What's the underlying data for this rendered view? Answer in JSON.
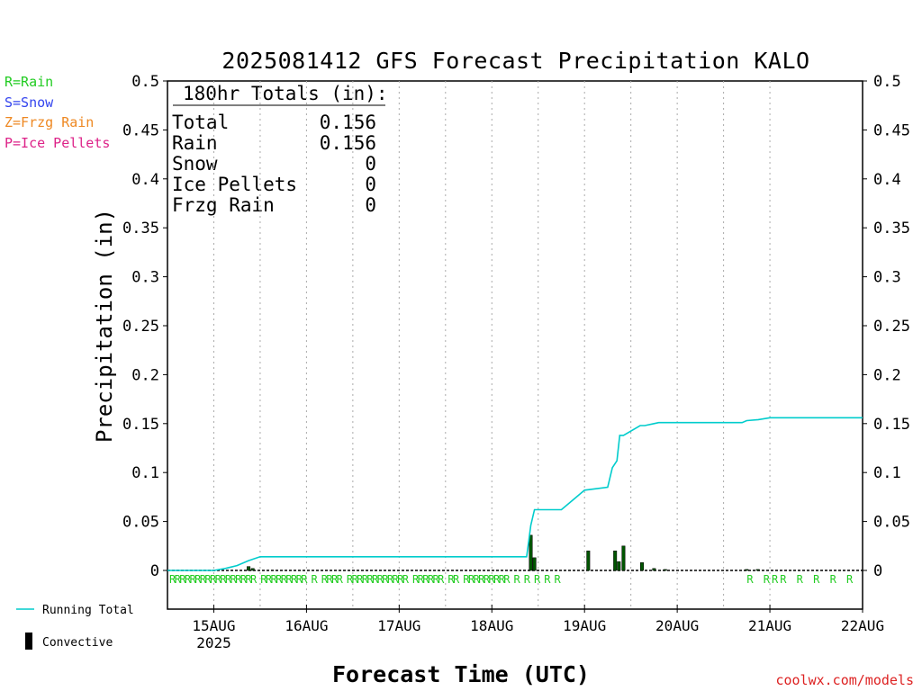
{
  "chart_data": {
    "type": "line",
    "title": "2025081412 GFS Forecast Precipitation KALO",
    "ylabel": "Precipitation (in)",
    "xlabel": "Forecast Time (UTC)",
    "ylim": [
      0,
      0.5
    ],
    "y_ticks": [
      "0",
      "0.05",
      "0.1",
      "0.15",
      "0.2",
      "0.25",
      "0.3",
      "0.35",
      "0.4",
      "0.45",
      "0.5"
    ],
    "x_ticks": [
      "15AUG",
      "16AUG",
      "17AUG",
      "18AUG",
      "19AUG",
      "20AUG",
      "21AUG",
      "22AUG"
    ],
    "x_tick_sub": "2025",
    "x_range_days": [
      14.5,
      22.0
    ],
    "grid": "vertical dotted",
    "legend_left": [
      {
        "text": "R=Rain",
        "color": "#22cc22"
      },
      {
        "text": "S=Snow",
        "color": "#3344ee"
      },
      {
        "text": "Z=Frzg Rain",
        "color": "#ee8822"
      },
      {
        "text": "P=Ice Pellets",
        "color": "#dd2288"
      }
    ],
    "legend_bottom": [
      {
        "text": "Running Total",
        "color": "#00cccc"
      },
      {
        "text": "Convective",
        "color": "#000000"
      }
    ],
    "totals": {
      "header": "180hr Totals (in):",
      "rows": [
        {
          "label": "Total",
          "value": "0.156"
        },
        {
          "label": "Rain",
          "value": "0.156"
        },
        {
          "label": "Snow",
          "value": "0"
        },
        {
          "label": "Ice Pellets",
          "value": "0"
        },
        {
          "label": "Frzg Rain",
          "value": "0"
        }
      ]
    },
    "series": [
      {
        "name": "Running Total",
        "color": "#00cccc",
        "x": [
          14.5,
          14.7,
          14.75,
          14.9,
          14.95,
          15.0,
          15.125,
          15.25,
          15.375,
          15.5,
          15.55,
          18.375,
          18.42,
          18.46,
          18.5,
          18.75,
          19.0,
          19.25,
          19.3,
          19.35,
          19.38,
          19.42,
          19.6,
          19.65,
          19.75,
          19.8,
          19.9,
          20.0,
          20.5,
          20.7,
          20.75,
          20.875,
          21.0,
          22.0
        ],
        "y": [
          0,
          0,
          0,
          0,
          0,
          0,
          0.002,
          0.005,
          0.01,
          0.014,
          0.014,
          0.014,
          0.046,
          0.062,
          0.062,
          0.062,
          0.082,
          0.085,
          0.105,
          0.112,
          0.138,
          0.138,
          0.148,
          0.148,
          0.15,
          0.151,
          0.151,
          0.151,
          0.151,
          0.151,
          0.153,
          0.154,
          0.156,
          0.156
        ]
      }
    ],
    "bars": {
      "name": "Precipitation",
      "color": "#005500",
      "x": [
        15.375,
        15.42,
        18.42,
        18.46,
        19.04,
        19.33,
        19.37,
        19.42,
        19.62,
        19.75,
        19.87,
        20.75,
        20.87
      ],
      "values": [
        0.004,
        0.002,
        0.036,
        0.013,
        0.02,
        0.02,
        0.009,
        0.025,
        0.008,
        0.002,
        0.001,
        0.001,
        0.001
      ]
    },
    "precip_type_labels": {
      "color": "#22cc22",
      "text_rows": [
        "RRRRRRRRRRRRRRRRR RRRRRRRRR R RRRR RRRRRRRRRRRR RRRRRR RR RRRRRRRRR R R R R R",
        "R RRR R R R R"
      ]
    },
    "credit": "coolwx.com/models"
  }
}
